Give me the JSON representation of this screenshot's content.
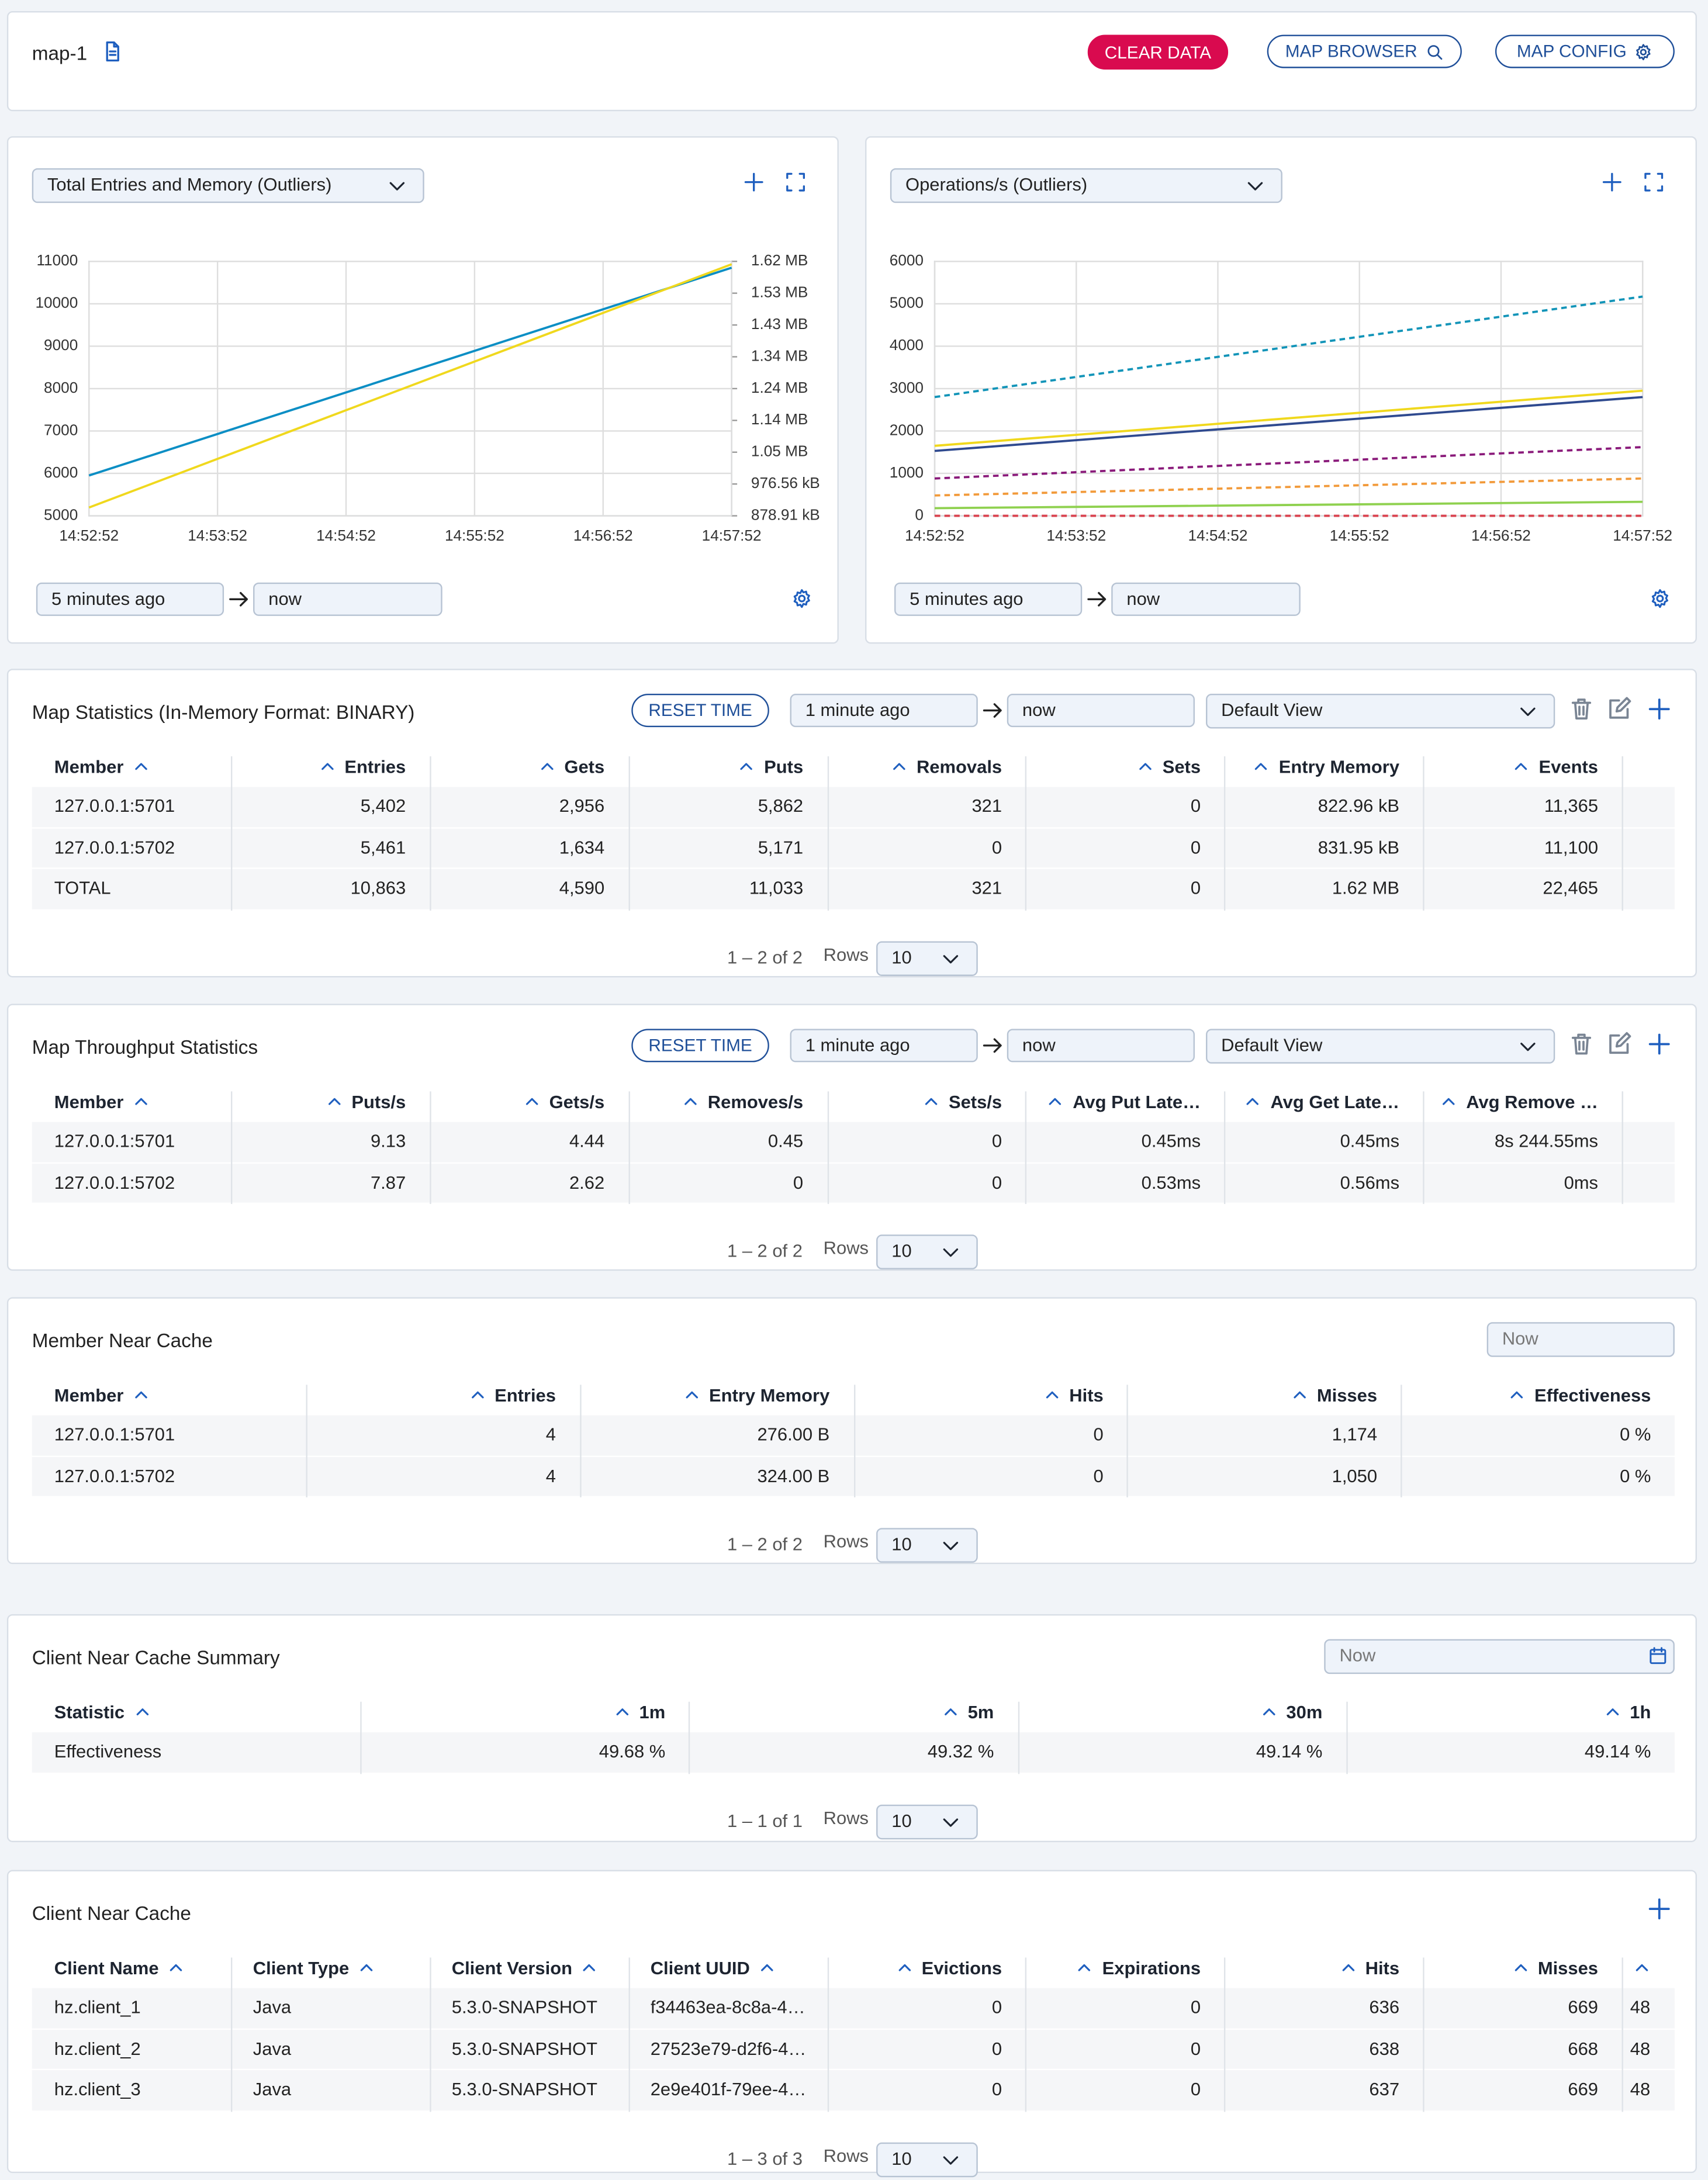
{
  "header": {
    "title": "map-1",
    "buttons": [
      "CLEAR DATA",
      "MAP BROWSER",
      "MAP CONFIG"
    ]
  },
  "chart_data": [
    {
      "type": "line",
      "title": "Total Entries and Memory (Outliers)",
      "range": [
        "5 minutes ago",
        "now"
      ],
      "categories": [
        "14:52:52",
        "14:53:52",
        "14:54:52",
        "14:55:52",
        "14:56:52",
        "14:57:52"
      ],
      "ylim": [
        5000,
        11000
      ],
      "yticks": [
        5000,
        6000,
        7000,
        8000,
        9000,
        10000,
        11000
      ],
      "y2lim": [
        900000,
        1700000
      ],
      "y2ticks": [
        {
          "value": 900000,
          "label": "878.91 kB"
        },
        {
          "value": 1000000,
          "label": "976.56 kB"
        },
        {
          "value": 1100000,
          "label": "1.05 MB"
        },
        {
          "value": 1200000,
          "label": "1.14 MB"
        },
        {
          "value": 1300000,
          "label": "1.24 MB"
        },
        {
          "value": 1400000,
          "label": "1.34 MB"
        },
        {
          "value": 1500000,
          "label": "1.43 MB"
        },
        {
          "value": 1600000,
          "label": "1.53 MB"
        },
        {
          "value": 1700000,
          "label": "1.62 MB"
        }
      ],
      "grid": true,
      "series": [
        {
          "color": "#0b8ec4",
          "dashed": false,
          "values": [
            5950,
            6930,
            7910,
            8890,
            9870,
            10850
          ]
        },
        {
          "color": "#f0d81d",
          "dashed": false,
          "axis": "y2",
          "values": [
            926000,
            1079000,
            1232000,
            1385000,
            1538000,
            1691000
          ]
        }
      ]
    },
    {
      "type": "line",
      "title": "Operations/s (Outliers)",
      "range": [
        "5 minutes ago",
        "now"
      ],
      "categories": [
        "14:52:52",
        "14:53:52",
        "14:54:52",
        "14:55:52",
        "14:56:52",
        "14:57:52"
      ],
      "ylim": [
        0,
        6000
      ],
      "yticks": [
        0,
        1000,
        2000,
        3000,
        4000,
        5000,
        6000
      ],
      "grid": true,
      "series": [
        {
          "color": "#1294b8",
          "dashed": true,
          "values": [
            2800,
            3274,
            3748,
            4222,
            4696,
            5170
          ]
        },
        {
          "color": "#f0d81d",
          "dashed": false,
          "values": [
            1650,
            1910,
            2170,
            2430,
            2690,
            2950
          ]
        },
        {
          "color": "#2f4a8f",
          "dashed": false,
          "values": [
            1530,
            1784,
            2038,
            2292,
            2546,
            2800
          ]
        },
        {
          "color": "#8a1a7a",
          "dashed": true,
          "values": [
            880,
            1028,
            1176,
            1324,
            1472,
            1620
          ]
        },
        {
          "color": "#f29a3a",
          "dashed": true,
          "values": [
            480,
            560,
            640,
            720,
            800,
            880
          ]
        },
        {
          "color": "#8fd14f",
          "dashed": false,
          "values": [
            180,
            210,
            240,
            270,
            300,
            330
          ]
        },
        {
          "color": "#d9434f",
          "dashed": true,
          "values": [
            0,
            0,
            0,
            0,
            0,
            0
          ]
        }
      ]
    }
  ],
  "tables": [
    {
      "title": "Map Statistics (In-Memory Format: BINARY)",
      "reset": "RESET TIME",
      "from": "1 minute ago",
      "to": "now",
      "view": "Default View",
      "columns": [
        "Member",
        "Entries",
        "Gets",
        "Puts",
        "Removals",
        "Sets",
        "Entry Memory",
        "Events"
      ],
      "rows": [
        [
          "127.0.0.1:5701",
          "5,402",
          "2,956",
          "5,862",
          "321",
          "0",
          "822.96 kB",
          "11,365"
        ],
        [
          "127.0.0.1:5702",
          "5,461",
          "1,634",
          "5,171",
          "0",
          "0",
          "831.95 kB",
          "11,100"
        ],
        [
          "TOTAL",
          "10,863",
          "4,590",
          "11,033",
          "321",
          "0",
          "1.62 MB",
          "22,465"
        ]
      ],
      "pagination": "1 – 2 of 2",
      "rows_label": "Rows",
      "page_size": "10"
    },
    {
      "title": "Map Throughput Statistics",
      "reset": "RESET TIME",
      "from": "1 minute ago",
      "to": "now",
      "view": "Default View",
      "columns": [
        "Member",
        "Puts/s",
        "Gets/s",
        "Removes/s",
        "Sets/s",
        "Avg Put Late…",
        "Avg Get Late…",
        "Avg Remove …"
      ],
      "rows": [
        [
          "127.0.0.1:5701",
          "9.13",
          "4.44",
          "0.45",
          "0",
          "0.45ms",
          "0.45ms",
          "8s 244.55ms"
        ],
        [
          "127.0.0.1:5702",
          "7.87",
          "2.62",
          "0",
          "0",
          "0.53ms",
          "0.56ms",
          "0ms"
        ]
      ],
      "pagination": "1 – 2 of 2",
      "rows_label": "Rows",
      "page_size": "10"
    },
    {
      "title": "Member Near Cache",
      "time": "Now",
      "columns": [
        "Member",
        "Entries",
        "Entry Memory",
        "Hits",
        "Misses",
        "Effectiveness"
      ],
      "rows": [
        [
          "127.0.0.1:5701",
          "4",
          "276.00 B",
          "0",
          "1,174",
          "0 %"
        ],
        [
          "127.0.0.1:5702",
          "4",
          "324.00 B",
          "0",
          "1,050",
          "0 %"
        ]
      ],
      "pagination": "1 – 2 of 2",
      "rows_label": "Rows",
      "page_size": "10"
    },
    {
      "title": "Client Near Cache Summary",
      "time": "Now",
      "columns": [
        "Statistic",
        "1m",
        "5m",
        "30m",
        "1h"
      ],
      "rows": [
        [
          "Effectiveness",
          "49.68 %",
          "49.32 %",
          "49.14 %",
          "49.14 %"
        ]
      ],
      "pagination": "1 – 1 of 1",
      "rows_label": "Rows",
      "page_size": "10"
    },
    {
      "title": "Client Near Cache",
      "columns": [
        "Client Name",
        "Client Type",
        "Client Version",
        "Client UUID",
        "Evictions",
        "Expirations",
        "Hits",
        "Misses",
        null
      ],
      "rows": [
        [
          "hz.client_1",
          "Java",
          "5.3.0-SNAPSHOT",
          "f34463ea-8c8a-4…",
          "0",
          "0",
          "636",
          "669",
          "48."
        ],
        [
          "hz.client_2",
          "Java",
          "5.3.0-SNAPSHOT",
          "27523e79-d2f6-4…",
          "0",
          "0",
          "638",
          "668",
          "48."
        ],
        [
          "hz.client_3",
          "Java",
          "5.3.0-SNAPSHOT",
          "2e9e401f-79ee-4…",
          "0",
          "0",
          "637",
          "669",
          "48."
        ]
      ],
      "pagination": "1 – 3 of 3",
      "rows_label": "Rows",
      "page_size": "10"
    }
  ]
}
